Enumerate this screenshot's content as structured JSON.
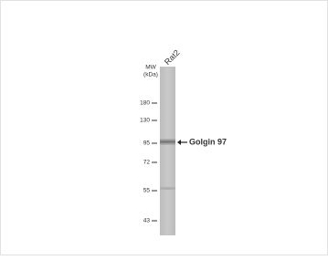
{
  "lane_label": "Rat2",
  "mw_label": "MW",
  "unit_label": "(kDa)",
  "markers": [
    "180",
    "130",
    "95",
    "72",
    "55",
    "43"
  ],
  "band_label": "Golgin 97"
}
